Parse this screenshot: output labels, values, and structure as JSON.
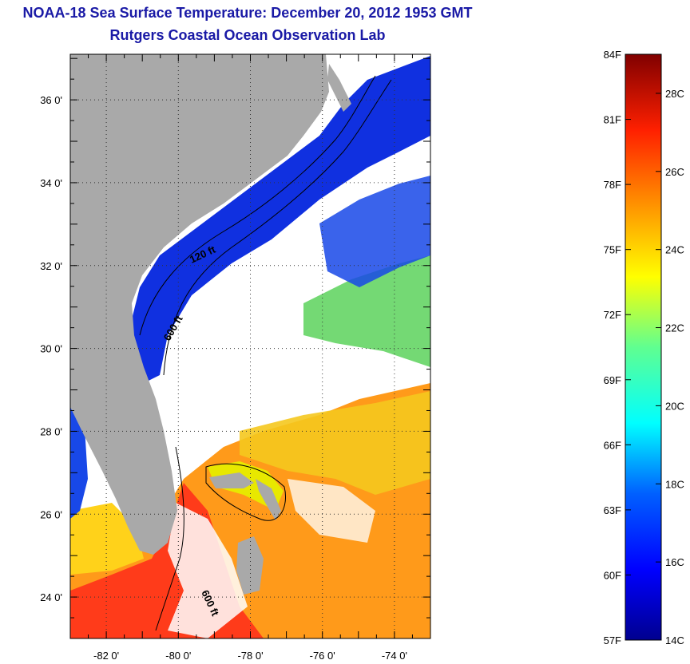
{
  "title": {
    "line1": "NOAA-18 Sea Surface Temperature:  December 20, 2012 1953 GMT",
    "line2": "Rutgers Coastal Ocean Observation Lab"
  },
  "axes": {
    "lat_labels": [
      "36 0'",
      "34 0'",
      "32 0'",
      "30 0'",
      "28 0'",
      "26 0'",
      "24 0'"
    ],
    "lat_values": [
      36,
      34,
      32,
      30,
      28,
      26,
      24
    ],
    "lon_labels": [
      "-82 0'",
      "-80 0'",
      "-78 0'",
      "-76 0'",
      "-74 0'"
    ],
    "lon_values": [
      -82,
      -80,
      -78,
      -76,
      -74
    ],
    "lat_range": [
      23,
      37.1
    ],
    "lon_range": [
      -83,
      -73
    ]
  },
  "contour_labels": [
    "120 ft",
    "600 ft",
    "600 ft"
  ],
  "colorbar": {
    "fahrenheit_labels": [
      "84F",
      "81F",
      "78F",
      "75F",
      "72F",
      "69F",
      "66F",
      "63F",
      "60F",
      "57F"
    ],
    "celsius_labels": [
      "28C",
      "26C",
      "24C",
      "22C",
      "20C",
      "18C",
      "16C",
      "14C"
    ],
    "celsius_range": [
      14,
      29
    ],
    "fahrenheit_range": [
      57,
      84
    ]
  },
  "colors": {
    "land": "#a9a9a9",
    "cloud_mask": "#ffffff",
    "title": "#1a1aa6",
    "warm_gulf_stream": "#ff3b1a",
    "cold_shelf": "#1030e0"
  }
}
